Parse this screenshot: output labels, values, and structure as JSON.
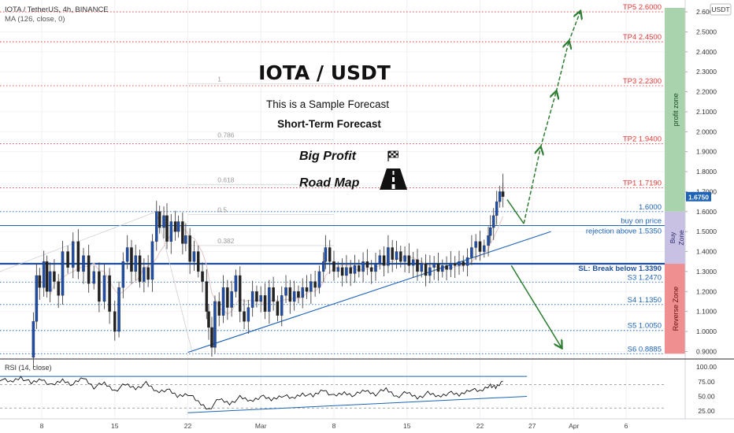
{
  "header": {
    "symbol_line": "IOTA / TetherUS, 4h, BINANCE",
    "ma_line": "MA (126, close, 0)",
    "currency_badge": "USDT"
  },
  "overlay": {
    "title": "IOTA / USDT",
    "subtitle1": "This is a Sample Forecast",
    "subtitle2": "Short-Term Forecast",
    "big_profit": "Big Profit",
    "road_map": "Road Map",
    "flag_icon": "checkered-flag-icon",
    "road_icon": "road-icon"
  },
  "chart_data": {
    "type": "candlestick",
    "y_axis": {
      "min": 0.87,
      "max": 2.62,
      "position": "right",
      "ticks": [
        "2.6000",
        "2.5000",
        "2.4000",
        "2.3000",
        "2.2000",
        "2.1000",
        "2.0000",
        "1.9000",
        "1.8000",
        "1.7000",
        "1.6000",
        "1.5000",
        "1.4000",
        "1.3000",
        "1.2000",
        "1.1000",
        "1.0000",
        "0.9000"
      ],
      "current_price": "1.6750"
    },
    "x_axis": {
      "ticks": [
        {
          "label": "8",
          "day": 8
        },
        {
          "label": "15",
          "day": 15
        },
        {
          "label": "22",
          "day": 22
        },
        {
          "label": "Mar",
          "day": 29
        },
        {
          "label": "8",
          "day": 36
        },
        {
          "label": "15",
          "day": 43
        },
        {
          "label": "22",
          "day": 50
        },
        {
          "label": "27",
          "day": 55
        },
        {
          "label": "Apr",
          "day": 59
        },
        {
          "label": "6",
          "day": 64
        }
      ],
      "day_min": 4.0,
      "day_max": 67.7
    },
    "levels": [
      {
        "label": "TP5 2.6000",
        "value": 2.6,
        "color": "#e53935",
        "style": "dotted"
      },
      {
        "label": "TP4 2.4500",
        "value": 2.45,
        "color": "#e53935",
        "style": "dotted"
      },
      {
        "label": "TP3 2.2300",
        "value": 2.23,
        "color": "#e53935",
        "style": "dotted"
      },
      {
        "label": "TP2 1.9400",
        "value": 1.94,
        "color": "#e53935",
        "style": "dotted"
      },
      {
        "label": "TP1 1.7190",
        "value": 1.719,
        "color": "#e53935",
        "style": "dotted"
      },
      {
        "label": "1.6000",
        "value": 1.6,
        "color": "#1e63b5",
        "style": "dotted"
      },
      {
        "label": "buy on price",
        "value": 1.53,
        "color": "#1e63b5",
        "style": "solid-thin"
      },
      {
        "label": "rejection above 1.5350",
        "value": 1.535,
        "color": "#1e63b5",
        "style": "none"
      },
      {
        "label": "SL: Break below 1.3390",
        "value": 1.339,
        "color": "#1e4f9c",
        "style": "solid-thick"
      },
      {
        "label": "S3 1.2470",
        "value": 1.247,
        "color": "#1e63b5",
        "style": "dotted"
      },
      {
        "label": "S4 1.1350",
        "value": 1.135,
        "color": "#1e63b5",
        "style": "dotted"
      },
      {
        "label": "S5 1.0050",
        "value": 1.005,
        "color": "#1e63b5",
        "style": "dotted"
      },
      {
        "label": "S6 0.8885",
        "value": 0.8885,
        "color": "#1e63b5",
        "style": "dotted"
      }
    ],
    "fib_levels": [
      {
        "label": "1",
        "value": 2.24
      },
      {
        "label": "0.786",
        "value": 1.96
      },
      {
        "label": "0.618",
        "value": 1.735
      },
      {
        "label": "0.5",
        "value": 1.585
      },
      {
        "label": "0.382",
        "value": 1.43
      }
    ],
    "zones": [
      {
        "label": "profit zone",
        "from": 1.6,
        "to": 2.62,
        "color": "#a9d3ad"
      },
      {
        "label": "Buy Zone",
        "from": 1.339,
        "to": 1.6,
        "color": "#c9c1e4"
      },
      {
        "label": "Reverse Zone",
        "from": 0.8885,
        "to": 1.339,
        "color": "#f08f8f"
      }
    ],
    "closes": [
      [
        6.9,
        0.87
      ],
      [
        7.2,
        1.05
      ],
      [
        7.5,
        1.28
      ],
      [
        7.8,
        1.22
      ],
      [
        8.2,
        1.35
      ],
      [
        8.5,
        1.2
      ],
      [
        8.8,
        1.3
      ],
      [
        9.2,
        1.25
      ],
      [
        9.6,
        1.18
      ],
      [
        10.0,
        1.4
      ],
      [
        10.5,
        1.32
      ],
      [
        11.0,
        1.45
      ],
      [
        11.5,
        1.3
      ],
      [
        12.0,
        1.38
      ],
      [
        12.5,
        1.24
      ],
      [
        13.0,
        1.3
      ],
      [
        13.5,
        1.15
      ],
      [
        14.0,
        1.28
      ],
      [
        14.5,
        1.1
      ],
      [
        15.0,
        1.0
      ],
      [
        15.4,
        1.22
      ],
      [
        15.8,
        1.35
      ],
      [
        16.2,
        1.42
      ],
      [
        16.6,
        1.3
      ],
      [
        17.0,
        1.38
      ],
      [
        17.4,
        1.25
      ],
      [
        17.8,
        1.32
      ],
      [
        18.2,
        1.26
      ],
      [
        18.6,
        1.45
      ],
      [
        19.0,
        1.6
      ],
      [
        19.3,
        1.52
      ],
      [
        19.7,
        1.58
      ],
      [
        20.0,
        1.45
      ],
      [
        20.4,
        1.55
      ],
      [
        20.8,
        1.5
      ],
      [
        21.1,
        1.55
      ],
      [
        21.5,
        1.44
      ],
      [
        21.8,
        1.48
      ],
      [
        22.2,
        1.35
      ],
      [
        22.6,
        1.4
      ],
      [
        23.0,
        1.3
      ],
      [
        23.4,
        1.25
      ],
      [
        23.8,
        1.1
      ],
      [
        24.0,
        1.02
      ],
      [
        24.3,
        0.92
      ],
      [
        24.6,
        1.15
      ],
      [
        25.0,
        1.08
      ],
      [
        25.4,
        1.22
      ],
      [
        25.8,
        1.12
      ],
      [
        26.2,
        1.2
      ],
      [
        26.6,
        1.28
      ],
      [
        27.0,
        1.1
      ],
      [
        27.4,
        1.05
      ],
      [
        27.8,
        1.12
      ],
      [
        28.2,
        1.2
      ],
      [
        28.6,
        1.15
      ],
      [
        29.0,
        1.18
      ],
      [
        29.4,
        1.1
      ],
      [
        29.8,
        1.22
      ],
      [
        30.2,
        1.15
      ],
      [
        30.6,
        1.08
      ],
      [
        31.0,
        1.18
      ],
      [
        31.4,
        1.22
      ],
      [
        31.8,
        1.15
      ],
      [
        32.2,
        1.2
      ],
      [
        32.6,
        1.17
      ],
      [
        33.0,
        1.22
      ],
      [
        33.4,
        1.2
      ],
      [
        33.8,
        1.25
      ],
      [
        34.2,
        1.22
      ],
      [
        34.6,
        1.3
      ],
      [
        35.0,
        1.35
      ],
      [
        35.2,
        1.42
      ],
      [
        35.6,
        1.35
      ],
      [
        36.0,
        1.3
      ],
      [
        36.4,
        1.32
      ],
      [
        36.8,
        1.28
      ],
      [
        37.2,
        1.32
      ],
      [
        37.6,
        1.29
      ],
      [
        38.0,
        1.33
      ],
      [
        38.4,
        1.3
      ],
      [
        38.8,
        1.35
      ],
      [
        39.2,
        1.32
      ],
      [
        39.6,
        1.3
      ],
      [
        40.0,
        1.34
      ],
      [
        40.4,
        1.38
      ],
      [
        40.8,
        1.33
      ],
      [
        41.2,
        1.42
      ],
      [
        41.6,
        1.36
      ],
      [
        42.0,
        1.4
      ],
      [
        42.4,
        1.35
      ],
      [
        42.8,
        1.38
      ],
      [
        43.2,
        1.33
      ],
      [
        43.6,
        1.36
      ],
      [
        44.0,
        1.3
      ],
      [
        44.4,
        1.34
      ],
      [
        44.8,
        1.28
      ],
      [
        45.2,
        1.32
      ],
      [
        45.6,
        1.34
      ],
      [
        46.0,
        1.3
      ],
      [
        46.4,
        1.33
      ],
      [
        46.8,
        1.31
      ],
      [
        47.2,
        1.34
      ],
      [
        47.6,
        1.33
      ],
      [
        48.0,
        1.35
      ],
      [
        48.4,
        1.33
      ],
      [
        48.8,
        1.37
      ],
      [
        49.2,
        1.42
      ],
      [
        49.6,
        1.45
      ],
      [
        50.0,
        1.4
      ],
      [
        50.4,
        1.43
      ],
      [
        50.8,
        1.48
      ],
      [
        51.0,
        1.52
      ],
      [
        51.3,
        1.58
      ],
      [
        51.6,
        1.65
      ],
      [
        51.9,
        1.7
      ],
      [
        52.2,
        1.675
      ]
    ],
    "forecast_path": [
      [
        52.6,
        1.66
      ],
      [
        54.2,
        1.54
      ],
      [
        55.8,
        1.92
      ],
      [
        57.3,
        2.2
      ],
      [
        58.5,
        2.45
      ],
      [
        59.6,
        2.6
      ]
    ],
    "reverse_path": [
      [
        53.0,
        1.33
      ],
      [
        57.8,
        0.92
      ]
    ],
    "trendline": [
      [
        22.0,
        0.895
      ],
      [
        56.8,
        1.5
      ]
    ],
    "rsi": {
      "label": "RSI (14, close)",
      "ticks": [
        "100.00",
        "75.00",
        "50.00",
        "25.00"
      ],
      "upper_line": 84,
      "lower_start": 22,
      "lower_end": 50,
      "values": [
        [
          4.0,
          80
        ],
        [
          5.0,
          74
        ],
        [
          6.0,
          83
        ],
        [
          7.0,
          72
        ],
        [
          8.0,
          80
        ],
        [
          9.0,
          68
        ],
        [
          10.0,
          78
        ],
        [
          11.0,
          70
        ],
        [
          12.0,
          82
        ],
        [
          13.0,
          66
        ],
        [
          14.0,
          72
        ],
        [
          15.0,
          60
        ],
        [
          16.0,
          70
        ],
        [
          17.0,
          64
        ],
        [
          18.0,
          72
        ],
        [
          19.0,
          58
        ],
        [
          20.0,
          62
        ],
        [
          21.0,
          50
        ],
        [
          22.0,
          55
        ],
        [
          23.0,
          40
        ],
        [
          24.0,
          28
        ],
        [
          25.0,
          45
        ],
        [
          26.0,
          38
        ],
        [
          27.0,
          48
        ],
        [
          28.0,
          42
        ],
        [
          29.0,
          50
        ],
        [
          30.0,
          44
        ],
        [
          31.0,
          52
        ],
        [
          32.0,
          46
        ],
        [
          33.0,
          55
        ],
        [
          34.0,
          50
        ],
        [
          35.0,
          62
        ],
        [
          36.0,
          50
        ],
        [
          37.0,
          56
        ],
        [
          38.0,
          52
        ],
        [
          39.0,
          60
        ],
        [
          40.0,
          54
        ],
        [
          41.0,
          62
        ],
        [
          42.0,
          50
        ],
        [
          43.0,
          56
        ],
        [
          44.0,
          48
        ],
        [
          45.0,
          55
        ],
        [
          46.0,
          50
        ],
        [
          47.0,
          56
        ],
        [
          48.0,
          52
        ],
        [
          49.0,
          62
        ],
        [
          50.0,
          58
        ],
        [
          51.0,
          70
        ],
        [
          51.5,
          64
        ],
        [
          52.2,
          76
        ]
      ]
    }
  }
}
